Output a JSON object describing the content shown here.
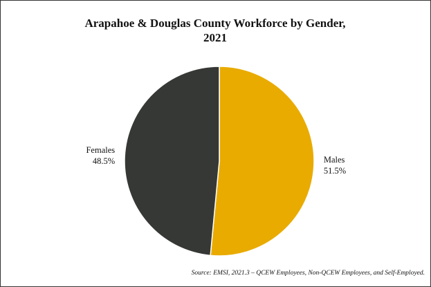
{
  "chart_data": {
    "type": "pie",
    "title": "Arapahoe & Douglas County Workforce by Gender, 2021",
    "categories": [
      "Males",
      "Females"
    ],
    "values": [
      51.5,
      48.5
    ],
    "value_labels": [
      "51.5%",
      "48.5%"
    ],
    "colors": [
      "#e9ab00",
      "#363835"
    ],
    "source": "Source: EMSI, 2021.3 – QCEW Employees, Non-QCEW Employees, and Self-Employed."
  }
}
